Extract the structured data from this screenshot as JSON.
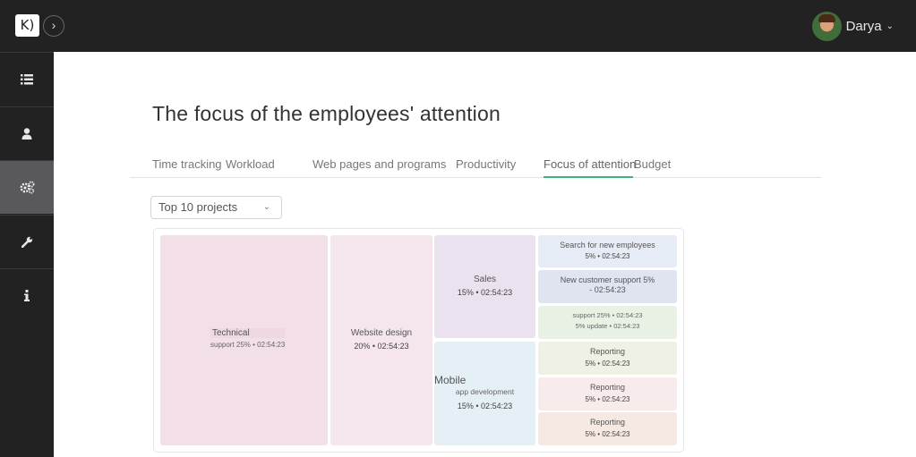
{
  "app": {
    "logo_text": "K)",
    "collapse_icon": "›",
    "user_name": "Darya",
    "user_chevron": "⌄"
  },
  "sidebar": {
    "items": [
      {
        "name": "list",
        "glyph": "☰"
      },
      {
        "name": "user",
        "glyph": "👤"
      },
      {
        "name": "gears",
        "glyph": "⚙"
      },
      {
        "name": "wrench",
        "glyph": "🔧"
      },
      {
        "name": "info",
        "glyph": "ℹ"
      }
    ]
  },
  "page": {
    "title": "The focus of the employees' attention"
  },
  "tabs": [
    {
      "label": "Time tracking"
    },
    {
      "label": "Workload"
    },
    {
      "label": "Web pages and programs"
    },
    {
      "label": "Productivity"
    },
    {
      "label": "Focus of attention"
    },
    {
      "label": "Budget"
    }
  ],
  "active_tab": "Focus of attention",
  "filter": {
    "value": "Top 10 projects",
    "chevron": "⌄"
  },
  "treemap": {
    "cells": [
      {
        "title": "Technical",
        "subtitle": "support 25% • 02:54:23",
        "color": "#f3dfe8"
      },
      {
        "title": "Website design",
        "subtitle": "20% • 02:54:23",
        "color": "#f5e6ee"
      },
      {
        "title": "Sales",
        "subtitle": "15% • 02:54:23",
        "color": "#ebe2ef"
      },
      {
        "title": "Mobile",
        "subtitle_1": "app development",
        "subtitle_2": "15% • 02:54:23",
        "color": "#e4eff6"
      },
      {
        "title": "Search for new employees",
        "subtitle": "5% • 02:54:23",
        "color": "#e6ecf6"
      },
      {
        "title": "New customer support 5%",
        "subtitle": "- 02:54:23",
        "color": "#dfe4f0"
      },
      {
        "line_1": "support 25% • 02:54:23",
        "line_2": "5% update • 02:54:23",
        "color": "#e9f0e4"
      },
      {
        "title": "Reporting",
        "subtitle": "5% • 02:54:23",
        "color": "#eef1e3"
      },
      {
        "title": "Reporting",
        "subtitle": "5% • 02:54:23",
        "color": "#f8ebeb"
      },
      {
        "title": "Reporting",
        "subtitle": "5% • 02:54:23",
        "color": "#f5e9e1"
      }
    ]
  }
}
